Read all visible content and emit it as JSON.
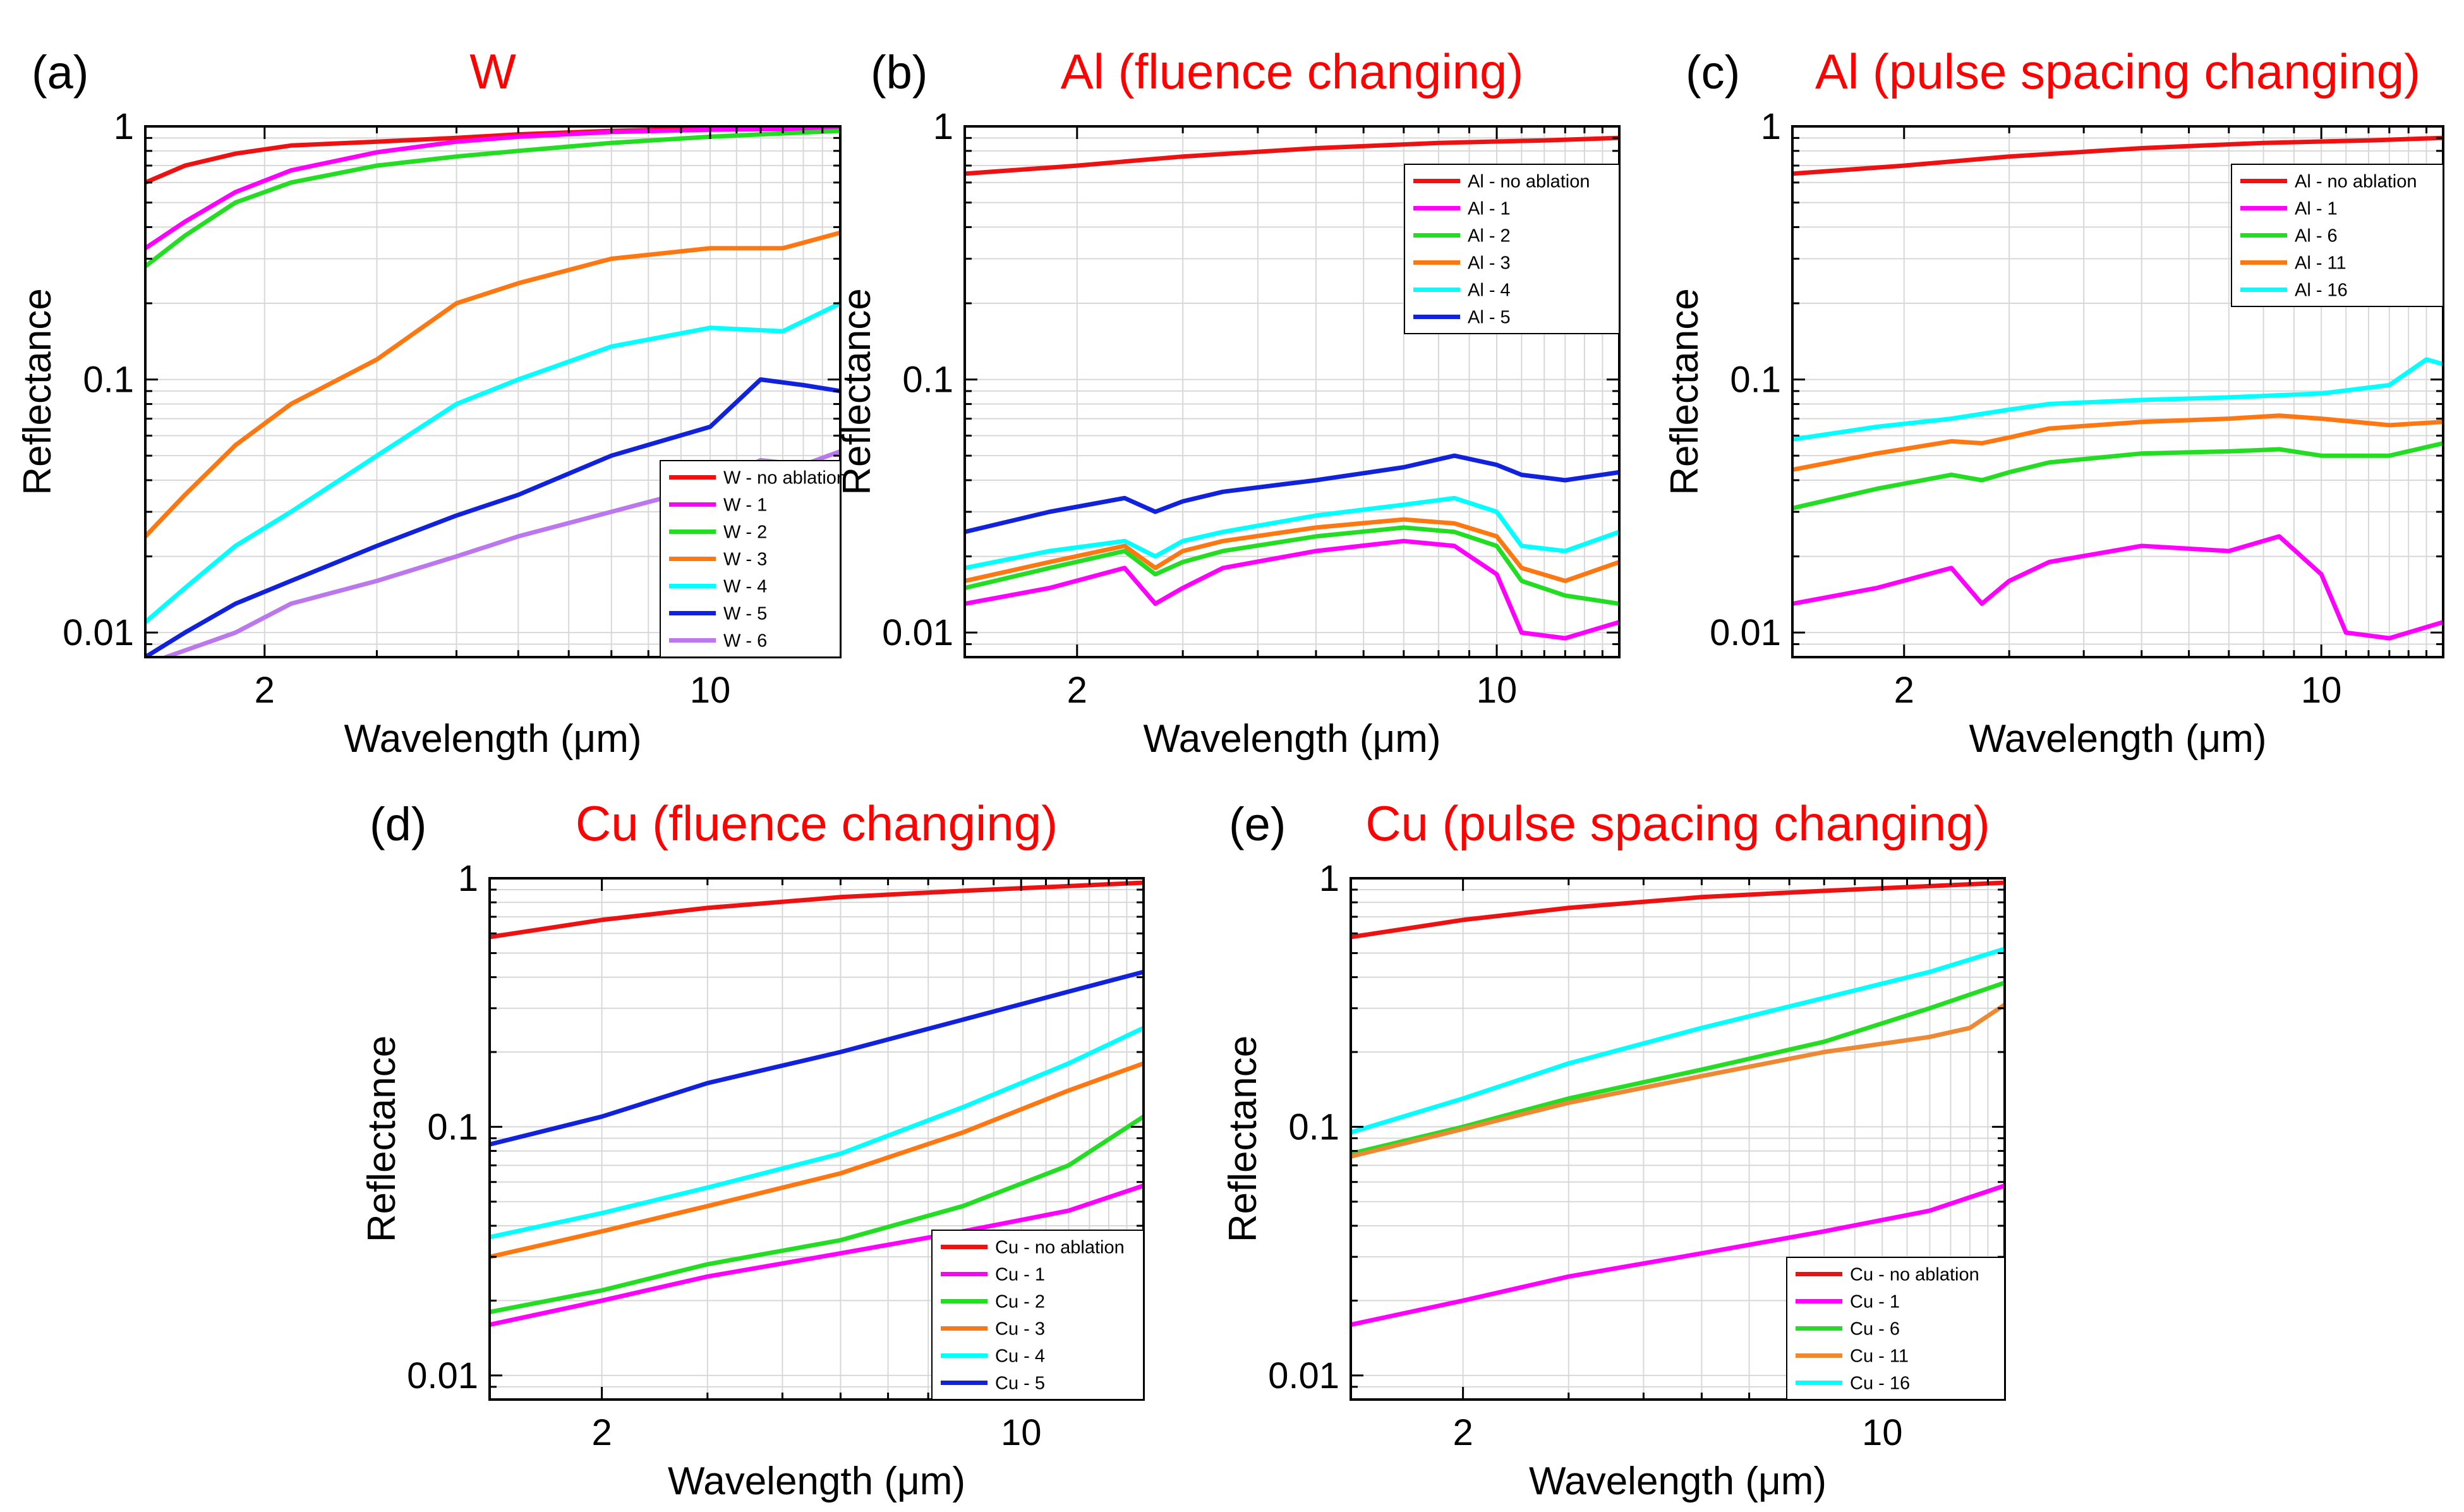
{
  "figure": {
    "background": "#ffffff"
  },
  "chart_data": [
    {
      "panel_label": "(a)",
      "title": "W",
      "type": "line",
      "xlabel": "Wavelength (μm)",
      "ylabel": "Reflectance",
      "xscale": "log",
      "yscale": "log",
      "xlim": [
        1.3,
        16
      ],
      "ylim": [
        0.008,
        1.0
      ],
      "xticks": [
        {
          "value": 2,
          "label": "2"
        },
        {
          "value": 10,
          "label": "10"
        }
      ],
      "yticks": [
        {
          "value": 0.01,
          "label": "0.01"
        },
        {
          "value": 0.1,
          "label": "0.1"
        },
        {
          "value": 1,
          "label": "1"
        }
      ],
      "grid": true,
      "legend_position": "bottom-right",
      "series": [
        {
          "name": "W - no ablation",
          "color": "#ee1111",
          "x": [
            1.3,
            1.5,
            1.8,
            2.2,
            3,
            4,
            5,
            7,
            10,
            16
          ],
          "y": [
            0.6,
            0.7,
            0.78,
            0.84,
            0.87,
            0.9,
            0.93,
            0.96,
            0.98,
            0.99
          ]
        },
        {
          "name": "W - 1",
          "color": "#ff00ff",
          "x": [
            1.3,
            1.5,
            1.8,
            2.2,
            3,
            4,
            5,
            7,
            10,
            16
          ],
          "y": [
            0.33,
            0.42,
            0.55,
            0.67,
            0.79,
            0.87,
            0.91,
            0.95,
            0.97,
            0.98
          ]
        },
        {
          "name": "W - 2",
          "color": "#22dd22",
          "x": [
            1.3,
            1.5,
            1.8,
            2.2,
            3,
            4,
            5,
            7,
            10,
            16
          ],
          "y": [
            0.28,
            0.37,
            0.5,
            0.6,
            0.7,
            0.76,
            0.8,
            0.86,
            0.91,
            0.96
          ]
        },
        {
          "name": "W - 3",
          "color": "#ff7711",
          "x": [
            1.3,
            1.5,
            1.8,
            2.2,
            3,
            4,
            5,
            7,
            10,
            13,
            16
          ],
          "y": [
            0.024,
            0.035,
            0.055,
            0.08,
            0.12,
            0.2,
            0.24,
            0.3,
            0.33,
            0.33,
            0.38
          ]
        },
        {
          "name": "W - 4",
          "color": "#00ffff",
          "x": [
            1.3,
            1.5,
            1.8,
            2.2,
            3,
            4,
            5,
            7,
            10,
            13,
            16
          ],
          "y": [
            0.011,
            0.015,
            0.022,
            0.03,
            0.05,
            0.08,
            0.1,
            0.135,
            0.16,
            0.155,
            0.2
          ]
        },
        {
          "name": "W - 5",
          "color": "#1122dd",
          "x": [
            1.3,
            1.5,
            1.8,
            2.2,
            3,
            4,
            5,
            7,
            10,
            12,
            14,
            16
          ],
          "y": [
            0.008,
            0.01,
            0.013,
            0.016,
            0.022,
            0.029,
            0.035,
            0.05,
            0.065,
            0.1,
            0.095,
            0.09
          ]
        },
        {
          "name": "W - 6",
          "color": "#bb77ee",
          "x": [
            1.4,
            1.6,
            1.8,
            2.2,
            3,
            4,
            5,
            7,
            10,
            12,
            14,
            16
          ],
          "y": [
            0.008,
            0.009,
            0.01,
            0.013,
            0.016,
            0.02,
            0.024,
            0.03,
            0.038,
            0.048,
            0.046,
            0.052
          ]
        }
      ]
    },
    {
      "panel_label": "(b)",
      "title": "Al (fluence changing)",
      "type": "line",
      "xlabel": "Wavelength (μm)",
      "ylabel": "Reflectance",
      "xscale": "log",
      "yscale": "log",
      "xlim": [
        1.3,
        16
      ],
      "ylim": [
        0.008,
        1.0
      ],
      "xticks": [
        {
          "value": 2,
          "label": "2"
        },
        {
          "value": 10,
          "label": "10"
        }
      ],
      "yticks": [
        {
          "value": 0.01,
          "label": "0.01"
        },
        {
          "value": 0.1,
          "label": "0.1"
        },
        {
          "value": 1,
          "label": "1"
        }
      ],
      "grid": true,
      "legend_position": "top-right",
      "series": [
        {
          "name": "Al - no ablation",
          "color": "#ee1111",
          "x": [
            1.3,
            2,
            3,
            5,
            8,
            12,
            16
          ],
          "y": [
            0.65,
            0.7,
            0.76,
            0.82,
            0.86,
            0.88,
            0.9
          ]
        },
        {
          "name": "Al - 1",
          "color": "#ff00ff",
          "x": [
            1.3,
            1.8,
            2.4,
            2.7,
            3,
            3.5,
            5,
            7,
            8.5,
            10,
            11,
            13,
            16
          ],
          "y": [
            0.013,
            0.015,
            0.018,
            0.013,
            0.015,
            0.018,
            0.021,
            0.023,
            0.022,
            0.017,
            0.01,
            0.0095,
            0.011
          ]
        },
        {
          "name": "Al - 2",
          "color": "#22dd22",
          "x": [
            1.3,
            1.8,
            2.4,
            2.7,
            3,
            3.5,
            5,
            7,
            8.5,
            10,
            11,
            13,
            16
          ],
          "y": [
            0.015,
            0.018,
            0.021,
            0.017,
            0.019,
            0.021,
            0.024,
            0.026,
            0.025,
            0.022,
            0.016,
            0.014,
            0.013
          ]
        },
        {
          "name": "Al - 3",
          "color": "#ff7711",
          "x": [
            1.3,
            1.8,
            2.4,
            2.7,
            3,
            3.5,
            5,
            7,
            8.5,
            10,
            11,
            13,
            16
          ],
          "y": [
            0.016,
            0.019,
            0.022,
            0.018,
            0.021,
            0.023,
            0.026,
            0.028,
            0.027,
            0.024,
            0.018,
            0.016,
            0.019
          ]
        },
        {
          "name": "Al - 4",
          "color": "#00ffff",
          "x": [
            1.3,
            1.8,
            2.4,
            2.7,
            3,
            3.5,
            5,
            7,
            8.5,
            10,
            11,
            13,
            16
          ],
          "y": [
            0.018,
            0.021,
            0.023,
            0.02,
            0.023,
            0.025,
            0.029,
            0.032,
            0.034,
            0.03,
            0.022,
            0.021,
            0.025
          ]
        },
        {
          "name": "Al - 5",
          "color": "#1122dd",
          "x": [
            1.3,
            1.8,
            2.4,
            2.7,
            3,
            3.5,
            5,
            7,
            8.5,
            10,
            11,
            13,
            16
          ],
          "y": [
            0.025,
            0.03,
            0.034,
            0.03,
            0.033,
            0.036,
            0.04,
            0.045,
            0.05,
            0.046,
            0.042,
            0.04,
            0.043
          ]
        }
      ]
    },
    {
      "panel_label": "(c)",
      "title": "Al (pulse spacing changing)",
      "type": "line",
      "xlabel": "Wavelength (μm)",
      "ylabel": "Reflectance",
      "xscale": "log",
      "yscale": "log",
      "xlim": [
        1.3,
        16
      ],
      "ylim": [
        0.008,
        1.0
      ],
      "xticks": [
        {
          "value": 2,
          "label": "2"
        },
        {
          "value": 10,
          "label": "10"
        }
      ],
      "yticks": [
        {
          "value": 0.01,
          "label": "0.01"
        },
        {
          "value": 0.1,
          "label": "0.1"
        },
        {
          "value": 1,
          "label": "1"
        }
      ],
      "grid": true,
      "legend_position": "top-right",
      "series": [
        {
          "name": "Al - no ablation",
          "color": "#ee1111",
          "x": [
            1.3,
            2,
            3,
            5,
            8,
            12,
            16
          ],
          "y": [
            0.65,
            0.7,
            0.76,
            0.82,
            0.86,
            0.88,
            0.9
          ]
        },
        {
          "name": "Al - 1",
          "color": "#ff00ff",
          "x": [
            1.3,
            1.8,
            2.4,
            2.7,
            3,
            3.5,
            5,
            7,
            8.5,
            10,
            11,
            13,
            16
          ],
          "y": [
            0.013,
            0.015,
            0.018,
            0.013,
            0.016,
            0.019,
            0.022,
            0.021,
            0.024,
            0.017,
            0.01,
            0.0095,
            0.011
          ]
        },
        {
          "name": "Al - 6",
          "color": "#22dd22",
          "x": [
            1.3,
            1.8,
            2.4,
            2.7,
            3,
            3.5,
            5,
            7,
            8.5,
            10,
            13,
            16
          ],
          "y": [
            0.031,
            0.037,
            0.042,
            0.04,
            0.043,
            0.047,
            0.051,
            0.052,
            0.053,
            0.05,
            0.05,
            0.056
          ]
        },
        {
          "name": "Al - 11",
          "color": "#ff7711",
          "x": [
            1.3,
            1.8,
            2.4,
            2.7,
            3,
            3.5,
            5,
            7,
            8.5,
            10,
            13,
            16
          ],
          "y": [
            0.044,
            0.051,
            0.057,
            0.056,
            0.059,
            0.064,
            0.068,
            0.07,
            0.072,
            0.07,
            0.066,
            0.068
          ]
        },
        {
          "name": "Al - 16",
          "color": "#00ffff",
          "x": [
            1.3,
            1.8,
            2.4,
            3,
            3.5,
            5,
            7,
            10,
            13,
            15,
            16
          ],
          "y": [
            0.058,
            0.065,
            0.07,
            0.076,
            0.08,
            0.083,
            0.085,
            0.088,
            0.095,
            0.12,
            0.115
          ]
        }
      ]
    },
    {
      "panel_label": "(d)",
      "title": "Cu (fluence changing)",
      "type": "line",
      "xlabel": "Wavelength (μm)",
      "ylabel": "Reflectance",
      "xscale": "log",
      "yscale": "log",
      "xlim": [
        1.3,
        16
      ],
      "ylim": [
        0.008,
        1.0
      ],
      "xticks": [
        {
          "value": 2,
          "label": "2"
        },
        {
          "value": 10,
          "label": "10"
        }
      ],
      "yticks": [
        {
          "value": 0.01,
          "label": "0.01"
        },
        {
          "value": 0.1,
          "label": "0.1"
        },
        {
          "value": 1,
          "label": "1"
        }
      ],
      "grid": true,
      "legend_position": "bottom-right",
      "series": [
        {
          "name": "Cu - no ablation",
          "color": "#ee1111",
          "x": [
            1.3,
            2,
            3,
            5,
            8,
            12,
            16
          ],
          "y": [
            0.58,
            0.68,
            0.76,
            0.84,
            0.89,
            0.93,
            0.96
          ]
        },
        {
          "name": "Cu - 1",
          "color": "#ff00ff",
          "x": [
            1.3,
            2,
            3,
            5,
            8,
            12,
            16
          ],
          "y": [
            0.016,
            0.02,
            0.025,
            0.031,
            0.038,
            0.046,
            0.058
          ]
        },
        {
          "name": "Cu - 2",
          "color": "#22dd22",
          "x": [
            1.3,
            2,
            3,
            5,
            8,
            12,
            16
          ],
          "y": [
            0.018,
            0.022,
            0.028,
            0.035,
            0.048,
            0.07,
            0.11
          ]
        },
        {
          "name": "Cu - 3",
          "color": "#ff7711",
          "x": [
            1.3,
            2,
            3,
            5,
            8,
            12,
            16
          ],
          "y": [
            0.03,
            0.038,
            0.048,
            0.065,
            0.095,
            0.14,
            0.18
          ]
        },
        {
          "name": "Cu - 4",
          "color": "#00ffff",
          "x": [
            1.3,
            2,
            3,
            5,
            8,
            12,
            16
          ],
          "y": [
            0.036,
            0.045,
            0.057,
            0.078,
            0.12,
            0.18,
            0.25
          ]
        },
        {
          "name": "Cu - 5",
          "color": "#1122dd",
          "x": [
            1.3,
            2,
            3,
            5,
            8,
            12,
            16
          ],
          "y": [
            0.085,
            0.11,
            0.15,
            0.2,
            0.27,
            0.35,
            0.42
          ]
        }
      ]
    },
    {
      "panel_label": "(e)",
      "title": "Cu (pulse spacing changing)",
      "type": "line",
      "xlabel": "Wavelength (μm)",
      "ylabel": "Reflectance",
      "xscale": "log",
      "yscale": "log",
      "xlim": [
        1.3,
        16
      ],
      "ylim": [
        0.008,
        1.0
      ],
      "xticks": [
        {
          "value": 2,
          "label": "2"
        },
        {
          "value": 10,
          "label": "10"
        }
      ],
      "yticks": [
        {
          "value": 0.01,
          "label": "0.01"
        },
        {
          "value": 0.1,
          "label": "0.1"
        },
        {
          "value": 1,
          "label": "1"
        }
      ],
      "grid": true,
      "legend_position": "bottom-right",
      "series": [
        {
          "name": "Cu - no ablation",
          "color": "#ee1111",
          "x": [
            1.3,
            2,
            3,
            5,
            8,
            12,
            16
          ],
          "y": [
            0.58,
            0.68,
            0.76,
            0.84,
            0.89,
            0.93,
            0.96
          ]
        },
        {
          "name": "Cu - 1",
          "color": "#ff00ff",
          "x": [
            1.3,
            2,
            3,
            5,
            8,
            12,
            16
          ],
          "y": [
            0.016,
            0.02,
            0.025,
            0.031,
            0.038,
            0.046,
            0.058
          ]
        },
        {
          "name": "Cu - 6",
          "color": "#22dd22",
          "x": [
            1.3,
            2,
            3,
            5,
            8,
            12,
            16
          ],
          "y": [
            0.078,
            0.1,
            0.13,
            0.17,
            0.22,
            0.3,
            0.38
          ]
        },
        {
          "name": "Cu - 11",
          "color": "#ee8833",
          "x": [
            1.3,
            2,
            3,
            5,
            8,
            12,
            14,
            16
          ],
          "y": [
            0.076,
            0.098,
            0.125,
            0.16,
            0.2,
            0.23,
            0.25,
            0.31
          ]
        },
        {
          "name": "Cu - 16",
          "color": "#00ffff",
          "x": [
            1.3,
            2,
            3,
            5,
            8,
            12,
            16
          ],
          "y": [
            0.095,
            0.13,
            0.18,
            0.25,
            0.33,
            0.42,
            0.52
          ]
        }
      ]
    }
  ]
}
